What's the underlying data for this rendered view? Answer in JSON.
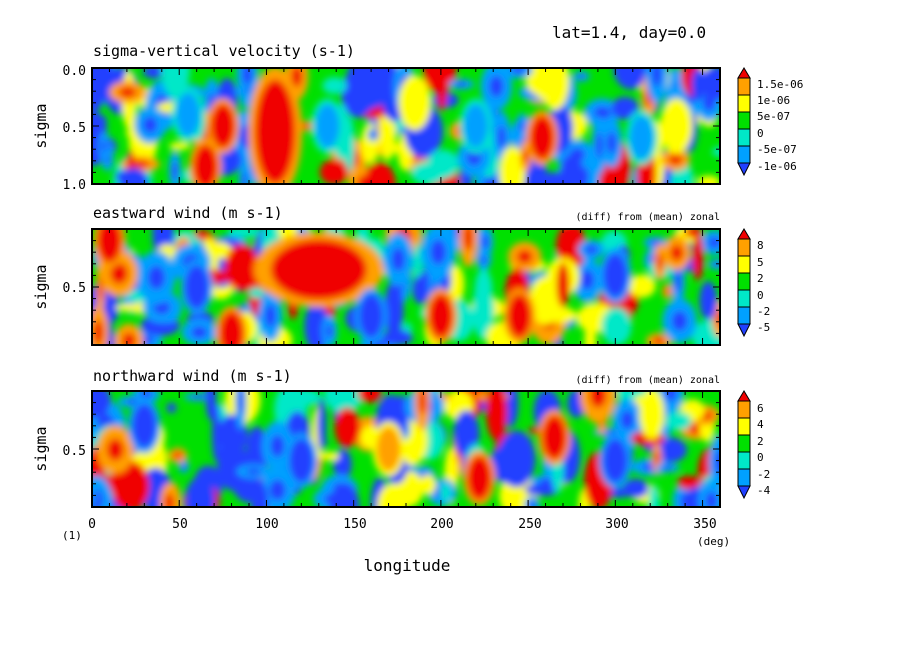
{
  "header": {
    "text": "lat=1.4, day=0.0"
  },
  "footer": {
    "level_note": "(1)",
    "x_unit": "(deg)",
    "x_label": "longitude"
  },
  "chart_data": [
    {
      "type": "heatmap",
      "title": "sigma-vertical velocity (s-1)",
      "subtitle": "",
      "ylabel": "sigma",
      "y_ticks": [
        "0.0",
        "0.5",
        "1.0"
      ],
      "xlim": [
        0,
        360
      ],
      "ylim": [
        1.0,
        0.0
      ],
      "colorbar_levels": [
        "1.5e-06",
        "1e-06",
        "5e-07",
        "0",
        "-5e-07",
        "-1e-06"
      ],
      "colors": [
        "#2040ff",
        "#00a0ff",
        "#00e8c8",
        "#00e000",
        "#ffff00",
        "#ffa000",
        "#f00000"
      ],
      "features": [
        {
          "lon": 105,
          "sigma": 0.55,
          "level": 6
        },
        {
          "lon": 75,
          "sigma": 0.5,
          "level": 6
        },
        {
          "lon": 258,
          "sigma": 0.6,
          "level": 6
        },
        {
          "lon": 65,
          "sigma": 0.85,
          "level": 6
        },
        {
          "lon": 55,
          "sigma": 0.4,
          "level": 1
        },
        {
          "lon": 135,
          "sigma": 0.5,
          "level": 1
        },
        {
          "lon": 220,
          "sigma": 0.5,
          "level": 1
        },
        {
          "lon": 315,
          "sigma": 0.6,
          "level": 1
        },
        {
          "lon": 185,
          "sigma": 0.3,
          "level": 4
        },
        {
          "lon": 335,
          "sigma": 0.5,
          "level": 4
        }
      ]
    },
    {
      "type": "heatmap",
      "title": "eastward wind (m s-1)",
      "subtitle": "(diff) from (mean) zonal",
      "ylabel": "sigma",
      "y_ticks": [
        "0.5"
      ],
      "xlim": [
        0,
        360
      ],
      "colorbar_levels": [
        "8",
        "5",
        "2",
        "0",
        "-2",
        "-5"
      ],
      "colors": [
        "#2040ff",
        "#00a0ff",
        "#00e8c8",
        "#00e000",
        "#ffff00",
        "#ffa000",
        "#f00000"
      ],
      "features": [
        {
          "lon": 130,
          "sigma": 0.35,
          "level": 6
        },
        {
          "lon": 200,
          "sigma": 0.75,
          "level": 6
        },
        {
          "lon": 245,
          "sigma": 0.75,
          "level": 6
        },
        {
          "lon": 80,
          "sigma": 0.9,
          "level": 6
        },
        {
          "lon": 10,
          "sigma": 0.1,
          "level": 6
        },
        {
          "lon": 160,
          "sigma": 0.75,
          "level": 0
        },
        {
          "lon": 300,
          "sigma": 0.4,
          "level": 0
        },
        {
          "lon": 60,
          "sigma": 0.5,
          "level": 0
        }
      ]
    },
    {
      "type": "heatmap",
      "title": "northward wind (m s-1)",
      "subtitle": "(diff) from (mean) zonal",
      "ylabel": "sigma",
      "y_ticks": [
        "0.5"
      ],
      "xlim": [
        0,
        360
      ],
      "x_ticks": [
        "0",
        "50",
        "100",
        "150",
        "200",
        "250",
        "300",
        "350"
      ],
      "colorbar_levels": [
        "6",
        "4",
        "2",
        "0",
        "-2",
        "-4"
      ],
      "colors": [
        "#2040ff",
        "#00a0ff",
        "#00e8c8",
        "#00e000",
        "#ffff00",
        "#ffa000",
        "#f00000"
      ],
      "features": [
        {
          "lon": 222,
          "sigma": 0.75,
          "level": 6
        },
        {
          "lon": 265,
          "sigma": 0.4,
          "level": 6
        },
        {
          "lon": 170,
          "sigma": 0.5,
          "level": 5
        },
        {
          "lon": 120,
          "sigma": 0.6,
          "level": 0
        },
        {
          "lon": 30,
          "sigma": 0.3,
          "level": 0
        },
        {
          "lon": 300,
          "sigma": 0.6,
          "level": 0
        }
      ]
    }
  ]
}
